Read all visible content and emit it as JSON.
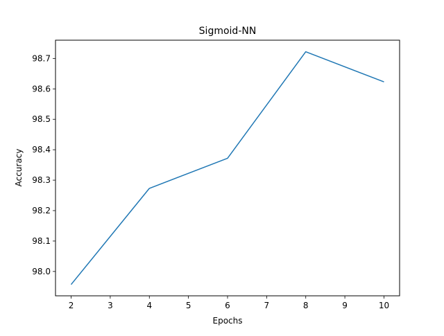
{
  "chart_data": {
    "type": "line",
    "title": "Sigmoid-NN",
    "xlabel": "Epochs",
    "ylabel": "Accuracy",
    "xlim": [
      1.6,
      10.4
    ],
    "ylim": [
      97.92,
      98.76
    ],
    "xticks": [
      2,
      3,
      4,
      5,
      6,
      7,
      8,
      9,
      10
    ],
    "yticks": [
      98.0,
      98.1,
      98.2,
      98.3,
      98.4,
      98.5,
      98.6,
      98.7
    ],
    "grid": false,
    "legend": "none",
    "series": [
      {
        "color": "#1f77b4",
        "x": [
          2,
          4,
          6,
          8,
          10
        ],
        "y": [
          97.957,
          98.273,
          98.372,
          98.722,
          98.623
        ]
      }
    ]
  }
}
